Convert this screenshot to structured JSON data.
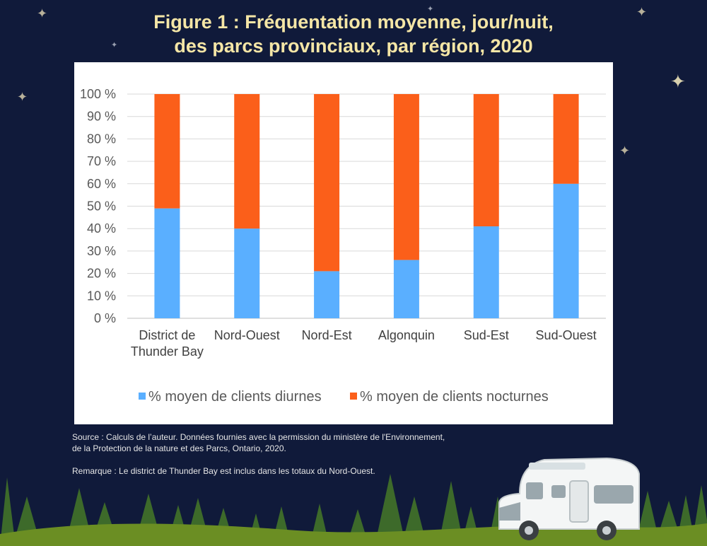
{
  "title": {
    "line1": "Figure 1 : Fréquentation moyenne, jour/nuit,",
    "line2": "des parcs provinciaux, par région, 2020"
  },
  "colors": {
    "background": "#101a3a",
    "title": "#f5e6a6",
    "day": "#5aafff",
    "night": "#fb5f1a"
  },
  "chart_data": {
    "type": "bar",
    "stacked": true,
    "categories": [
      [
        "District de",
        "Thunder Bay"
      ],
      [
        "Nord-Ouest"
      ],
      [
        "Nord-Est"
      ],
      [
        "Algonquin"
      ],
      [
        "Sud-Est"
      ],
      [
        "Sud-Ouest"
      ]
    ],
    "series": [
      {
        "name": "% moyen de clients diurnes",
        "values": [
          49,
          40,
          21,
          26,
          41,
          60
        ]
      },
      {
        "name": "% moyen de clients nocturnes",
        "values": [
          51,
          60,
          79,
          74,
          59,
          40
        ]
      }
    ],
    "yticks": [
      "0 %",
      "10 %",
      "20 %",
      "30 %",
      "40 %",
      "50 %",
      "60 %",
      "70 %",
      "80 %",
      "90 %",
      "100 %"
    ],
    "ylim": [
      0,
      100
    ],
    "grid": true,
    "legend_position": "bottom"
  },
  "notes": {
    "source_line1": "Source : Calculs de l’auteur. Données fournies avec la permission du ministère de l'Environnement,",
    "source_line2": "de la Protection de la nature et des Parcs, Ontario, 2020.",
    "remark": "Remarque : Le district de Thunder Bay est inclus dans les totaux du Nord-Ouest."
  }
}
